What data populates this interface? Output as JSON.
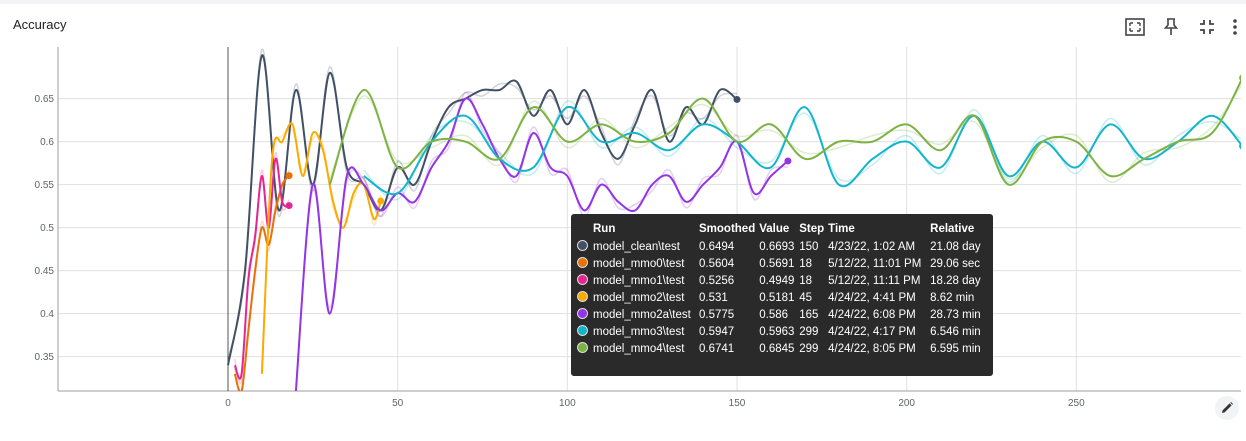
{
  "card": {
    "title": "Accuracy"
  },
  "toolbar": {
    "fit_icon": "fit-to-data-icon",
    "pin_icon": "pin-icon",
    "collapse_icon": "fullscreen-exit-icon",
    "menu_icon": "more-vert-icon",
    "edit_icon": "pencil-icon"
  },
  "chart_data": {
    "type": "line",
    "title": "Accuracy",
    "xlabel": "",
    "ylabel": "",
    "xlim": [
      -50,
      300
    ],
    "ylim": [
      0.31,
      0.71
    ],
    "x_ticks": [
      0,
      50,
      100,
      150,
      200,
      250
    ],
    "y_ticks": [
      0.35,
      0.4,
      0.45,
      0.5,
      0.55,
      0.6,
      0.65
    ],
    "y_tick_labels": [
      "0.35",
      "0.4",
      "0.45",
      "0.5",
      "0.55",
      "0.6",
      "0.65"
    ],
    "grid": true,
    "series": [
      {
        "name": "model_clean\\test",
        "color": "#425066",
        "x": [
          0,
          5,
          10,
          15,
          20,
          25,
          30,
          35,
          40,
          45,
          50,
          55,
          60,
          65,
          70,
          75,
          80,
          85,
          90,
          95,
          100,
          105,
          110,
          115,
          120,
          125,
          130,
          135,
          140,
          145,
          150
        ],
        "y": [
          0.34,
          0.45,
          0.7,
          0.52,
          0.66,
          0.55,
          0.68,
          0.57,
          0.55,
          0.52,
          0.57,
          0.55,
          0.6,
          0.64,
          0.65,
          0.66,
          0.66,
          0.67,
          0.63,
          0.66,
          0.62,
          0.66,
          0.61,
          0.58,
          0.62,
          0.66,
          0.6,
          0.64,
          0.62,
          0.66,
          0.649
        ]
      },
      {
        "name": "model_mmo0\\test",
        "color": "#e8710a",
        "x": [
          2,
          4,
          6,
          8,
          10,
          12,
          14,
          16,
          18
        ],
        "y": [
          0.33,
          0.31,
          0.38,
          0.45,
          0.5,
          0.48,
          0.52,
          0.55,
          0.5604
        ]
      },
      {
        "name": "model_mmo1\\test",
        "color": "#e52592",
        "x": [
          2,
          4,
          6,
          8,
          10,
          12,
          14,
          16,
          18
        ],
        "y": [
          0.34,
          0.33,
          0.44,
          0.49,
          0.56,
          0.5,
          0.58,
          0.53,
          0.5256
        ]
      },
      {
        "name": "model_mmo2\\test",
        "color": "#f9ab00",
        "x": [
          10,
          13,
          16,
          19,
          22,
          25,
          28,
          31,
          34,
          37,
          40,
          43,
          45
        ],
        "y": [
          0.33,
          0.58,
          0.6,
          0.62,
          0.56,
          0.61,
          0.59,
          0.53,
          0.5,
          0.54,
          0.55,
          0.51,
          0.531
        ]
      },
      {
        "name": "model_mmo2a\\test",
        "color": "#9334e6",
        "x": [
          20,
          25,
          30,
          35,
          40,
          45,
          50,
          55,
          60,
          65,
          70,
          75,
          80,
          85,
          90,
          95,
          100,
          105,
          110,
          115,
          120,
          125,
          130,
          135,
          140,
          145,
          150,
          155,
          160,
          165
        ],
        "y": [
          0.31,
          0.55,
          0.4,
          0.56,
          0.55,
          0.52,
          0.54,
          0.53,
          0.57,
          0.6,
          0.65,
          0.62,
          0.58,
          0.56,
          0.61,
          0.57,
          0.56,
          0.52,
          0.55,
          0.53,
          0.52,
          0.55,
          0.56,
          0.53,
          0.55,
          0.57,
          0.6,
          0.54,
          0.56,
          0.5775
        ]
      },
      {
        "name": "model_mmo3\\test",
        "color": "#12b5cb",
        "x": [
          40,
          50,
          60,
          70,
          80,
          90,
          100,
          110,
          120,
          130,
          140,
          150,
          160,
          170,
          180,
          190,
          200,
          210,
          220,
          230,
          240,
          250,
          260,
          270,
          280,
          290,
          299
        ],
        "y": [
          0.56,
          0.54,
          0.6,
          0.63,
          0.58,
          0.57,
          0.64,
          0.6,
          0.61,
          0.59,
          0.62,
          0.6,
          0.57,
          0.64,
          0.55,
          0.58,
          0.6,
          0.57,
          0.63,
          0.56,
          0.6,
          0.57,
          0.62,
          0.58,
          0.6,
          0.63,
          0.5947
        ]
      },
      {
        "name": "model_mmo4\\test",
        "color": "#7cb342",
        "x": [
          30,
          40,
          50,
          60,
          70,
          80,
          90,
          100,
          110,
          120,
          130,
          140,
          150,
          160,
          170,
          180,
          190,
          200,
          210,
          220,
          230,
          240,
          250,
          260,
          270,
          280,
          290,
          299
        ],
        "y": [
          0.55,
          0.66,
          0.57,
          0.6,
          0.6,
          0.58,
          0.64,
          0.6,
          0.62,
          0.6,
          0.61,
          0.65,
          0.6,
          0.62,
          0.58,
          0.6,
          0.6,
          0.62,
          0.59,
          0.63,
          0.55,
          0.6,
          0.6,
          0.56,
          0.58,
          0.6,
          0.61,
          0.6741
        ]
      }
    ]
  },
  "tooltip": {
    "headers": [
      "Run",
      "Smoothed",
      "Value",
      "Step",
      "Time",
      "Relative"
    ],
    "rows": [
      {
        "color": "#425066",
        "run": "model_clean\\test",
        "smoothed": "0.6494",
        "value": "0.6693",
        "step": "150",
        "time": "4/23/22, 1:02 AM",
        "relative": "21.08 day"
      },
      {
        "color": "#e8710a",
        "run": "model_mmo0\\test",
        "smoothed": "0.5604",
        "value": "0.5691",
        "step": "18",
        "time": "5/12/22, 11:01 PM",
        "relative": "29.06 sec"
      },
      {
        "color": "#e52592",
        "run": "model_mmo1\\test",
        "smoothed": "0.5256",
        "value": "0.4949",
        "step": "18",
        "time": "5/12/22, 11:11 PM",
        "relative": "18.28 day"
      },
      {
        "color": "#f9ab00",
        "run": "model_mmo2\\test",
        "smoothed": "0.531",
        "value": "0.5181",
        "step": "45",
        "time": "4/24/22, 4:41 PM",
        "relative": "8.62 min"
      },
      {
        "color": "#9334e6",
        "run": "model_mmo2a\\test",
        "smoothed": "0.5775",
        "value": "0.586",
        "step": "165",
        "time": "4/24/22, 6:08 PM",
        "relative": "28.73 min"
      },
      {
        "color": "#12b5cb",
        "run": "model_mmo3\\test",
        "smoothed": "0.5947",
        "value": "0.5963",
        "step": "299",
        "time": "4/24/22, 4:17 PM",
        "relative": "6.546 min"
      },
      {
        "color": "#7cb342",
        "run": "model_mmo4\\test",
        "smoothed": "0.6741",
        "value": "0.6845",
        "step": "299",
        "time": "4/24/22, 8:05 PM",
        "relative": "6.595 min"
      }
    ]
  }
}
